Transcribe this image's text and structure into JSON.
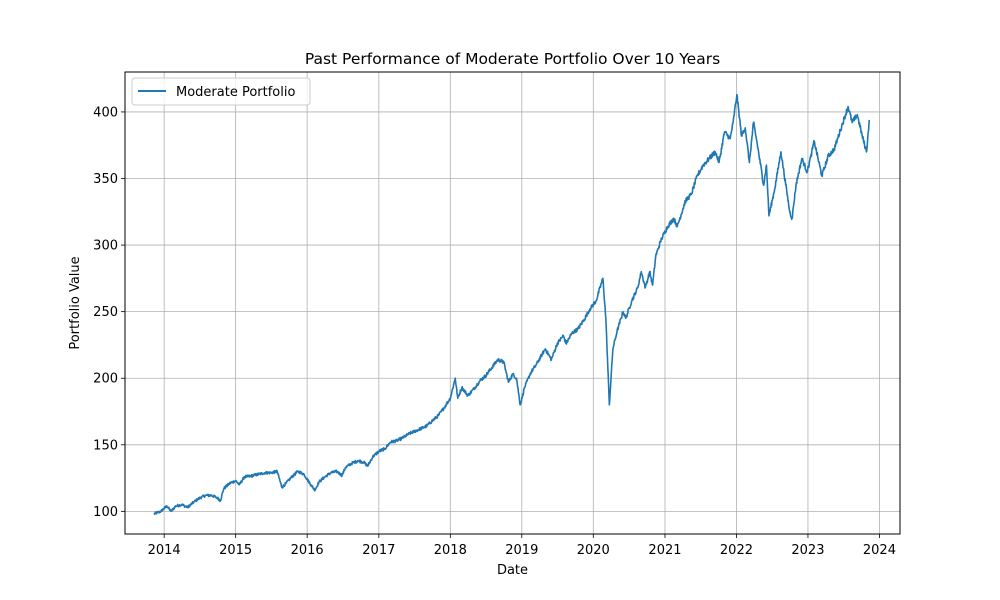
{
  "chart_data": {
    "type": "line",
    "title": "Past Performance of Moderate Portfolio Over 10 Years",
    "xlabel": "Date",
    "ylabel": "Portfolio Value",
    "xlim": [
      "2013-06-15",
      "2024-04-15"
    ],
    "ylim": [
      83,
      430
    ],
    "x_ticks": [
      "2014",
      "2015",
      "2016",
      "2017",
      "2018",
      "2019",
      "2020",
      "2021",
      "2022",
      "2023",
      "2024"
    ],
    "y_ticks": [
      100,
      150,
      200,
      250,
      300,
      350,
      400
    ],
    "grid": true,
    "legend_position": "top-left",
    "series": [
      {
        "name": "Moderate Portfolio",
        "color": "#1f77b4",
        "points": [
          [
            "2013-11-10",
            98
          ],
          [
            "2013-12-15",
            100
          ],
          [
            "2014-01-15",
            104
          ],
          [
            "2014-02-05",
            100
          ],
          [
            "2014-03-01",
            104
          ],
          [
            "2014-04-01",
            105
          ],
          [
            "2014-05-01",
            103
          ],
          [
            "2014-06-01",
            107
          ],
          [
            "2014-07-01",
            110
          ],
          [
            "2014-08-01",
            112
          ],
          [
            "2014-09-01",
            112
          ],
          [
            "2014-10-01",
            110
          ],
          [
            "2014-10-15",
            108
          ],
          [
            "2014-11-01",
            117
          ],
          [
            "2014-12-01",
            121
          ],
          [
            "2015-01-01",
            123
          ],
          [
            "2015-01-20",
            120
          ],
          [
            "2015-02-15",
            126
          ],
          [
            "2015-03-01",
            126
          ],
          [
            "2015-04-01",
            127
          ],
          [
            "2015-05-01",
            128
          ],
          [
            "2015-06-01",
            129
          ],
          [
            "2015-07-01",
            129
          ],
          [
            "2015-08-01",
            130
          ],
          [
            "2015-08-25",
            118
          ],
          [
            "2015-09-15",
            121
          ],
          [
            "2015-10-15",
            126
          ],
          [
            "2015-11-15",
            130
          ],
          [
            "2015-12-15",
            128
          ],
          [
            "2016-01-20",
            120
          ],
          [
            "2016-02-10",
            116
          ],
          [
            "2016-03-01",
            122
          ],
          [
            "2016-04-01",
            126
          ],
          [
            "2016-05-01",
            129
          ],
          [
            "2016-06-01",
            130
          ],
          [
            "2016-06-27",
            127
          ],
          [
            "2016-07-15",
            133
          ],
          [
            "2016-08-15",
            136
          ],
          [
            "2016-09-15",
            138
          ],
          [
            "2016-10-15",
            137
          ],
          [
            "2016-11-05",
            134
          ],
          [
            "2016-12-01",
            141
          ],
          [
            "2017-01-01",
            145
          ],
          [
            "2017-02-01",
            147
          ],
          [
            "2017-03-01",
            152
          ],
          [
            "2017-04-01",
            153
          ],
          [
            "2017-05-01",
            155
          ],
          [
            "2017-06-01",
            158
          ],
          [
            "2017-07-01",
            160
          ],
          [
            "2017-08-01",
            162
          ],
          [
            "2017-09-01",
            164
          ],
          [
            "2017-10-01",
            168
          ],
          [
            "2017-11-01",
            172
          ],
          [
            "2017-12-01",
            178
          ],
          [
            "2018-01-01",
            185
          ],
          [
            "2018-01-26",
            200
          ],
          [
            "2018-02-08",
            185
          ],
          [
            "2018-03-01",
            193
          ],
          [
            "2018-04-01",
            187
          ],
          [
            "2018-05-01",
            192
          ],
          [
            "2018-06-01",
            198
          ],
          [
            "2018-07-01",
            202
          ],
          [
            "2018-08-01",
            208
          ],
          [
            "2018-09-01",
            214
          ],
          [
            "2018-10-01",
            212
          ],
          [
            "2018-10-25",
            197
          ],
          [
            "2018-11-15",
            203
          ],
          [
            "2018-12-05",
            200
          ],
          [
            "2018-12-24",
            180
          ],
          [
            "2019-01-15",
            193
          ],
          [
            "2019-02-15",
            204
          ],
          [
            "2019-03-15",
            210
          ],
          [
            "2019-04-15",
            218
          ],
          [
            "2019-05-01",
            222
          ],
          [
            "2019-06-01",
            214
          ],
          [
            "2019-07-01",
            226
          ],
          [
            "2019-08-01",
            232
          ],
          [
            "2019-08-15",
            226
          ],
          [
            "2019-09-15",
            234
          ],
          [
            "2019-10-15",
            237
          ],
          [
            "2019-11-15",
            244
          ],
          [
            "2019-12-15",
            252
          ],
          [
            "2020-01-15",
            258
          ],
          [
            "2020-02-19",
            275
          ],
          [
            "2020-03-05",
            245
          ],
          [
            "2020-03-23",
            180
          ],
          [
            "2020-04-10",
            222
          ],
          [
            "2020-05-01",
            235
          ],
          [
            "2020-06-01",
            250
          ],
          [
            "2020-06-15",
            245
          ],
          [
            "2020-07-15",
            258
          ],
          [
            "2020-08-15",
            268
          ],
          [
            "2020-09-02",
            280
          ],
          [
            "2020-09-23",
            268
          ],
          [
            "2020-10-15",
            280
          ],
          [
            "2020-10-30",
            270
          ],
          [
            "2020-11-15",
            292
          ],
          [
            "2020-12-15",
            305
          ],
          [
            "2021-01-15",
            314
          ],
          [
            "2021-02-15",
            320
          ],
          [
            "2021-03-05",
            314
          ],
          [
            "2021-04-15",
            333
          ],
          [
            "2021-05-15",
            338
          ],
          [
            "2021-06-15",
            352
          ],
          [
            "2021-07-15",
            360
          ],
          [
            "2021-08-15",
            365
          ],
          [
            "2021-09-15",
            370
          ],
          [
            "2021-10-04",
            362
          ],
          [
            "2021-11-01",
            385
          ],
          [
            "2021-11-30",
            380
          ],
          [
            "2021-12-15",
            392
          ],
          [
            "2022-01-03",
            413
          ],
          [
            "2022-01-27",
            382
          ],
          [
            "2022-02-15",
            388
          ],
          [
            "2022-03-08",
            362
          ],
          [
            "2022-03-29",
            392
          ],
          [
            "2022-04-15",
            378
          ],
          [
            "2022-05-20",
            345
          ],
          [
            "2022-06-03",
            360
          ],
          [
            "2022-06-16",
            322
          ],
          [
            "2022-07-15",
            342
          ],
          [
            "2022-08-16",
            370
          ],
          [
            "2022-09-15",
            340
          ],
          [
            "2022-09-30",
            325
          ],
          [
            "2022-10-12",
            320
          ],
          [
            "2022-11-01",
            345
          ],
          [
            "2022-12-01",
            365
          ],
          [
            "2022-12-28",
            355
          ],
          [
            "2023-01-15",
            366
          ],
          [
            "2023-02-02",
            378
          ],
          [
            "2023-03-13",
            352
          ],
          [
            "2023-04-15",
            367
          ],
          [
            "2023-05-15",
            372
          ],
          [
            "2023-06-15",
            386
          ],
          [
            "2023-07-25",
            404
          ],
          [
            "2023-08-15",
            392
          ],
          [
            "2023-09-10",
            398
          ],
          [
            "2023-10-05",
            382
          ],
          [
            "2023-10-27",
            370
          ],
          [
            "2023-11-05",
            385
          ],
          [
            "2023-11-10",
            394
          ]
        ]
      }
    ]
  }
}
